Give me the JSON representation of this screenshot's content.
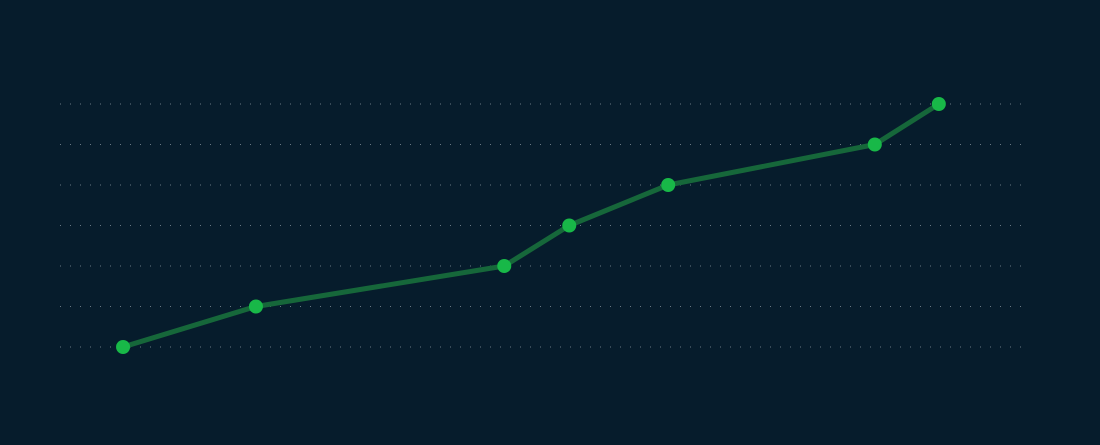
{
  "theme": {
    "background": "#061c2c",
    "gridline_color": "#b8c4cc",
    "line_color": "#16673a",
    "point_color": "#18b848"
  },
  "chart_data": {
    "type": "line",
    "title": "",
    "xlabel": "",
    "ylabel": "",
    "grid": true,
    "legend": "none",
    "xlim": [
      0,
      100
    ],
    "ylim": [
      0,
      6
    ],
    "gridlines_y": [
      0,
      1,
      2,
      3,
      4,
      5,
      6
    ],
    "series": [
      {
        "points": [
          {
            "x": 6.5,
            "y": 0
          },
          {
            "x": 20.2,
            "y": 1
          },
          {
            "x": 45.8,
            "y": 2
          },
          {
            "x": 52.5,
            "y": 3
          },
          {
            "x": 62.7,
            "y": 4
          },
          {
            "x": 84.0,
            "y": 5
          },
          {
            "x": 90.6,
            "y": 6
          }
        ]
      }
    ]
  }
}
